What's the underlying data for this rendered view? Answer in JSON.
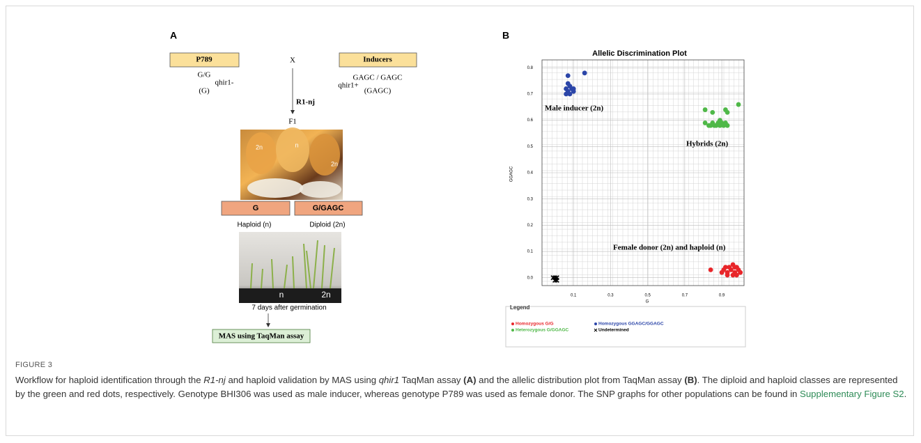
{
  "panel_a": {
    "label": "A",
    "parent_left": "P789",
    "cross": "X",
    "parent_right": "Inducers",
    "left_genotype": "G/G",
    "left_gene": "qhir1-",
    "left_allele": "(G)",
    "method": "R1-nj",
    "right_gene": "qhir1+",
    "right_genotype": "GAGC / GAGC",
    "right_allele": "(GAGC)",
    "generation": "F1",
    "kernel_labels": [
      "2n",
      "n",
      "2n"
    ],
    "class_left": "G",
    "class_right": "G/GAGC",
    "class_left_desc": "Haploid (n)",
    "class_right_desc": "Diploid (2n)",
    "seedling_labels": [
      "n",
      "2n"
    ],
    "seedling_caption": "7 days after germination",
    "final_step": "MAS using TaqMan assay"
  },
  "chart_data": {
    "type": "scatter",
    "panel_label": "B",
    "title": "Allelic Discrimination Plot",
    "x_label": "G",
    "y_label": "GGAGC",
    "xlim": [
      -0.07,
      1.02
    ],
    "ylim": [
      -0.03,
      0.83
    ],
    "xticks": [
      0.1,
      0.3,
      0.5,
      0.7,
      0.9
    ],
    "yticks": [
      {
        "value": 0,
        "label": "0.0"
      },
      0.1,
      0.2,
      0.3,
      0.4,
      0.5,
      0.6,
      0.7,
      0.8
    ],
    "grid": true,
    "legend_title": "Legend",
    "annotations": [
      "Male inducer (2n)",
      "Hybrids (2n)",
      "Female donor (2n) and haploid (n)"
    ],
    "series": [
      {
        "name": "Homozygous G/G",
        "color": "#e8262a",
        "marker": "dot",
        "x": [
          0.84,
          0.9,
          0.92,
          0.93,
          0.95,
          0.96,
          0.97,
          0.98,
          0.99,
          1.0,
          0.91,
          0.94,
          0.96,
          0.98,
          0.93,
          0.97
        ],
        "values": [
          0.03,
          0.02,
          0.04,
          0.01,
          0.03,
          0.05,
          0.02,
          0.04,
          0.03,
          0.02,
          0.03,
          0.04,
          0.01,
          0.01,
          0.02,
          0.04
        ]
      },
      {
        "name": "Heterozygous G/GGAGC",
        "color": "#4fb848",
        "marker": "dot",
        "x": [
          0.81,
          0.85,
          0.92,
          0.93,
          0.99,
          0.81,
          0.83,
          0.85,
          0.87,
          0.88,
          0.89,
          0.9,
          0.91,
          0.92,
          0.93,
          0.86,
          0.89,
          0.84
        ],
        "values": [
          0.64,
          0.63,
          0.64,
          0.63,
          0.66,
          0.59,
          0.58,
          0.59,
          0.58,
          0.59,
          0.58,
          0.59,
          0.58,
          0.59,
          0.58,
          0.58,
          0.6,
          0.58
        ]
      },
      {
        "name": "Homozygous GGAGC/GGAGC",
        "color": "#2b45a8",
        "marker": "dot",
        "x": [
          0.07,
          0.16,
          0.07,
          0.08,
          0.06,
          0.09,
          0.07,
          0.1,
          0.08,
          0.1,
          0.06
        ],
        "values": [
          0.77,
          0.78,
          0.74,
          0.73,
          0.72,
          0.72,
          0.71,
          0.71,
          0.7,
          0.72,
          0.7
        ]
      },
      {
        "name": "Undetermined",
        "color": "#000000",
        "marker": "x",
        "x": [
          -0.01,
          0.0,
          0.01,
          0.0,
          0.01
        ],
        "values": [
          0.0,
          -0.01,
          0.0,
          0.0,
          -0.01
        ]
      }
    ]
  },
  "caption": {
    "label": "FIGURE 3",
    "parts": [
      "Workflow for haploid identification through the ",
      "R1-nj",
      " and haploid validation by MAS using ",
      "qhir1",
      " TaqMan assay ",
      "(A)",
      " and the allelic distribution plot from TaqMan assay ",
      "(B)",
      ". The diploid and haploid classes are represented by the green and red dots, respectively. Genotype BHI306 was used as male inducer, whereas genotype P789 was used as female donor. The SNP graphs for other populations can be found in ",
      "Supplementary Figure S2",
      "."
    ]
  }
}
